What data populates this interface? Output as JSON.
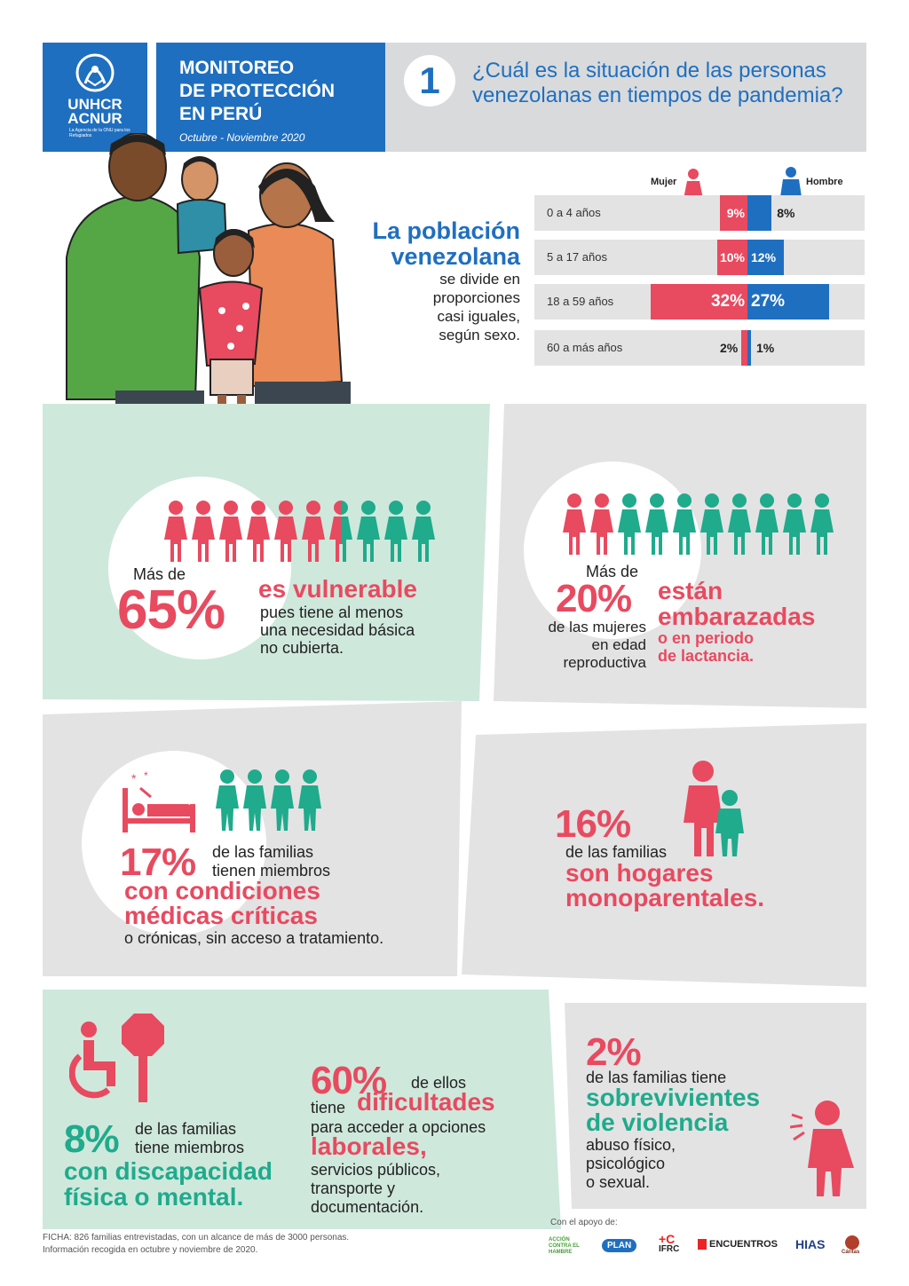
{
  "header": {
    "org_name": "UNHCR",
    "org_name_es": "ACNUR",
    "org_tagline": "La Agencia de la ONU para los Refugiados",
    "title_line1": "MONITOREO",
    "title_line2": "DE PROTECCIÓN",
    "title_line3": "EN PERÚ",
    "date": "Octubre - Noviembre 2020",
    "question_number": "1",
    "question": "¿Cuál es la situación de las personas venezolanas en tiempos de pandemia?"
  },
  "population": {
    "title_line1": "La población",
    "title_line2": "venezolana",
    "desc_line1": "se divide en",
    "desc_line2": "proporciones",
    "desc_line3": "casi iguales,",
    "desc_line4": "según sexo.",
    "female_label": "Mujer",
    "male_label": "Hombre",
    "groups": [
      {
        "label": "0 a 4 años",
        "female": "9%",
        "male": "8%",
        "female_pct": 9,
        "male_pct": 8
      },
      {
        "label": "5 a 17 años",
        "female": "10%",
        "male": "12%",
        "female_pct": 10,
        "male_pct": 12
      },
      {
        "label": "18 a 59 años",
        "female": "32%",
        "male": "27%",
        "female_pct": 32,
        "male_pct": 27
      },
      {
        "label": "60 a más años",
        "female": "2%",
        "male": "1%",
        "female_pct": 2,
        "male_pct": 1
      }
    ]
  },
  "stats": {
    "vulnerable": {
      "prefix": "Más de",
      "value": "65%",
      "headline": "es vulnerable",
      "line1": "pues tiene al menos",
      "line2": "una necesidad básica",
      "line3": "no cubierta.",
      "share": 0.65
    },
    "pregnant": {
      "prefix": "Más de",
      "value": "20%",
      "line1": "de las mujeres",
      "line2": "en edad",
      "line3": "reproductiva",
      "headline1": "están",
      "headline2": "embarazadas",
      "sub1": "o en periodo",
      "sub2": "de lactancia.",
      "share": 0.2
    },
    "medical": {
      "value": "17%",
      "line1": "de las familias",
      "line2": "tienen miembros",
      "headline1": "con condiciones",
      "headline2": "médicas críticas",
      "tail": "o crónicas, sin acceso a tratamiento."
    },
    "single_parent": {
      "value": "16%",
      "line1": "de las familias",
      "headline1": "son hogares",
      "headline2": "monoparentales."
    },
    "disability": {
      "value": "8%",
      "line1": "de las familias",
      "line2": "tiene miembros",
      "headline1": "con discapacidad",
      "headline2": "física o mental."
    },
    "labor": {
      "value": "60%",
      "suffix": "de ellos",
      "line1": "tiene",
      "headline1": "dificultades",
      "line2": "para acceder a opciones",
      "headline2": "laborales,",
      "line3": "servicios públicos,",
      "line4": "transporte y",
      "line5": "documentación."
    },
    "violence": {
      "value": "2%",
      "line1": "de las familias tiene",
      "headline1": "sobrevivientes",
      "headline2": "de violencia",
      "line2": "abuso físico,",
      "line3": "psicológico",
      "line4": "o sexual."
    }
  },
  "footer": {
    "note1": "FICHA: 826 familias entrevistadas, con un alcance de más de 3000 personas.",
    "note2": "Información recogida en octubre y noviembre de 2020.",
    "support_label": "Con el apoyo de:",
    "partners": [
      "ACCIÓN CONTRA EL HAMBRE",
      "PLAN",
      "IFRC",
      "ENCUENTROS",
      "HIAS",
      "Cáritas"
    ]
  },
  "colors": {
    "blue": "#1f6fc0",
    "pink": "#e84a5f",
    "teal": "#1fab8c",
    "grey": "#d9dadb",
    "mint": "#cfe8dc"
  }
}
